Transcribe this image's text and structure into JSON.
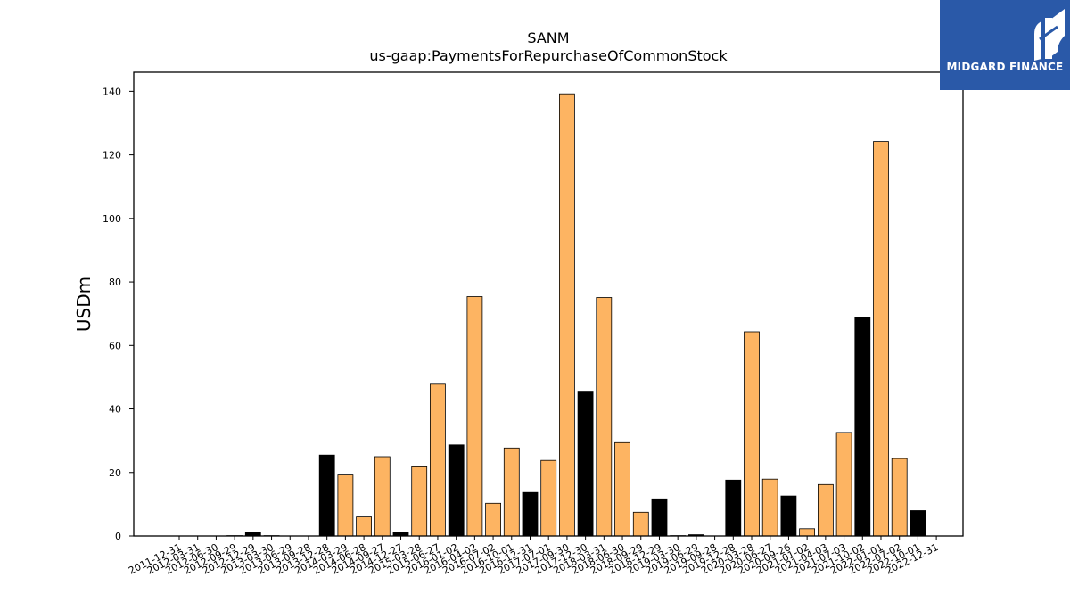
{
  "brand": {
    "name": "MIDGARD FINANCE",
    "bg_color": "#2a59a8"
  },
  "colors": {
    "normal_bar": "#fdb462",
    "alt_bar": "#000000"
  },
  "chart_data": {
    "type": "bar",
    "title": "SANM",
    "subtitle": "us-gaap:PaymentsForRepurchaseOfCommonStock",
    "xlabel": "",
    "ylabel": "USDm",
    "ylim": [
      0,
      146
    ],
    "yticks": [
      0,
      20,
      40,
      60,
      80,
      100,
      120,
      140
    ],
    "grid": false,
    "categories": [
      "2011-12-31",
      "2012-03-31",
      "2012-06-30",
      "2012-09-29",
      "2012-12-29",
      "2013-03-30",
      "2013-06-29",
      "2013-09-28",
      "2013-12-28",
      "2014-03-29",
      "2014-06-28",
      "2014-09-27",
      "2014-12-27",
      "2015-03-28",
      "2015-06-27",
      "2016-01-02",
      "2016-04-02",
      "2016-07-02",
      "2016-10-01",
      "2016-12-31",
      "2017-07-01",
      "2017-09-30",
      "2017-12-30",
      "2018-03-31",
      "2018-06-30",
      "2018-09-29",
      "2018-12-29",
      "2019-03-30",
      "2019-06-29",
      "2019-09-28",
      "2019-12-28",
      "2020-03-28",
      "2020-06-27",
      "2020-09-26",
      "2021-01-02",
      "2021-04-03",
      "2021-07-03",
      "2021-10-02",
      "2022-01-01",
      "2022-07-02",
      "2022-10-01",
      "2022-12-31"
    ],
    "values": [
      0,
      0,
      0,
      0.1,
      1.3,
      0.1,
      0,
      0,
      25.5,
      19.2,
      6.0,
      25.0,
      1.0,
      21.8,
      47.8,
      28.7,
      75.4,
      10.3,
      27.7,
      13.7,
      23.8,
      139.2,
      45.6,
      75.1,
      29.4,
      7.5,
      11.7,
      0.1,
      0.4,
      0,
      17.6,
      64.3,
      17.9,
      12.6,
      2.3,
      16.2,
      32.6,
      68.8,
      124.2,
      24.4,
      8.0,
      0
    ],
    "highlight": [
      false,
      false,
      false,
      true,
      true,
      true,
      false,
      false,
      true,
      false,
      false,
      false,
      true,
      false,
      false,
      true,
      false,
      false,
      false,
      true,
      false,
      false,
      true,
      false,
      false,
      false,
      true,
      false,
      true,
      false,
      true,
      false,
      false,
      true,
      false,
      false,
      false,
      true,
      false,
      false,
      true,
      false
    ]
  }
}
